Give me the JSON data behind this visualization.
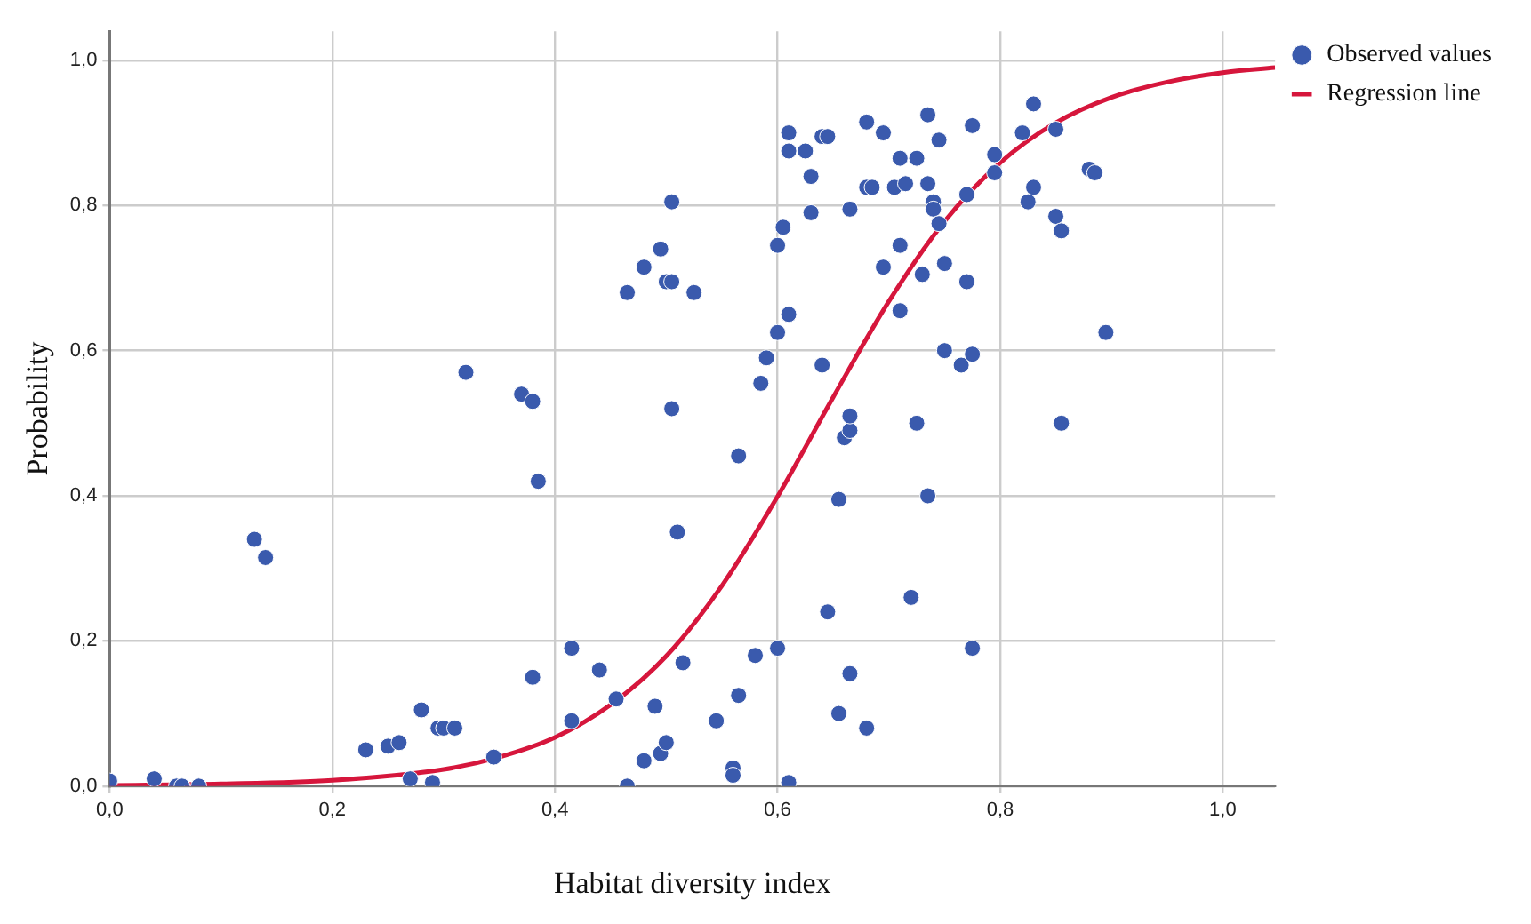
{
  "chart_data": {
    "type": "scatter",
    "xlabel": "Habitat diversity index",
    "ylabel": "Probability",
    "xlim": [
      0,
      1.047
    ],
    "ylim": [
      0,
      1.04
    ],
    "xticks": [
      {
        "value": 0,
        "label": "0,0"
      },
      {
        "value": 0.2,
        "label": "0,2"
      },
      {
        "value": 0.4,
        "label": "0,4"
      },
      {
        "value": 0.6,
        "label": "0,6"
      },
      {
        "value": 0.8,
        "label": "0,8"
      },
      {
        "value": 1,
        "label": "1,0"
      }
    ],
    "yticks": [
      {
        "value": 0,
        "label": "0,0"
      },
      {
        "value": 0.2,
        "label": "0,2"
      },
      {
        "value": 0.4,
        "label": "0,4"
      },
      {
        "value": 0.6,
        "label": "0,6"
      },
      {
        "value": 0.8,
        "label": "0,8"
      },
      {
        "value": 1,
        "label": "1,0"
      }
    ],
    "grid": true,
    "legend": "top right",
    "marker": "circle",
    "series": [
      {
        "name": "Observed values",
        "color": "#3a5aad",
        "x": [
          0,
          0.04,
          0.06,
          0.065,
          0.08,
          0.13,
          0.14,
          0.23,
          0.25,
          0.26,
          0.28,
          0.27,
          0.29,
          0.295,
          0.3,
          0.31,
          0.345,
          0.38,
          0.415,
          0.415,
          0.44,
          0.455,
          0.465,
          0.48,
          0.49,
          0.495,
          0.5,
          0.51,
          0.515,
          0.545,
          0.565,
          0.56,
          0.56,
          0.58,
          0.6,
          0.61,
          0.645,
          0.655,
          0.665,
          0.68,
          0.72,
          0.775,
          0.32,
          0.37,
          0.38,
          0.385,
          0.465,
          0.48,
          0.495,
          0.5,
          0.505,
          0.505,
          0.525,
          0.505,
          0.565,
          0.585,
          0.59,
          0.6,
          0.6,
          0.605,
          0.61,
          0.64,
          0.63,
          0.655,
          0.66,
          0.665,
          0.665,
          0.665,
          0.68,
          0.685,
          0.695,
          0.705,
          0.71,
          0.71,
          0.715,
          0.725,
          0.73,
          0.735,
          0.735,
          0.74,
          0.74,
          0.745,
          0.75,
          0.75,
          0.765,
          0.77,
          0.77,
          0.775,
          0.61,
          0.61,
          0.625,
          0.63,
          0.64,
          0.645,
          0.68,
          0.695,
          0.71,
          0.725,
          0.735,
          0.745,
          0.775,
          0.795,
          0.795,
          0.82,
          0.825,
          0.83,
          0.83,
          0.85,
          0.85,
          0.855,
          0.855,
          0.88,
          0.885,
          0.895
        ],
        "values": [
          0.007,
          0.01,
          0,
          0,
          0,
          0.34,
          0.315,
          0.05,
          0.055,
          0.06,
          0.105,
          0.01,
          0.005,
          0.08,
          0.08,
          0.08,
          0.04,
          0.15,
          0.19,
          0.09,
          0.16,
          0.12,
          0,
          0.035,
          0.11,
          0.045,
          0.06,
          0.35,
          0.17,
          0.09,
          0.125,
          0.025,
          0.015,
          0.18,
          0.19,
          0.005,
          0.24,
          0.1,
          0.155,
          0.08,
          0.26,
          0.19,
          0.57,
          0.54,
          0.53,
          0.42,
          0.68,
          0.715,
          0.74,
          0.695,
          0.695,
          0.805,
          0.68,
          0.52,
          0.455,
          0.555,
          0.59,
          0.625,
          0.745,
          0.77,
          0.65,
          0.58,
          0.79,
          0.395,
          0.48,
          0.49,
          0.51,
          0.795,
          0.825,
          0.825,
          0.715,
          0.825,
          0.745,
          0.655,
          0.83,
          0.5,
          0.705,
          0.4,
          0.83,
          0.805,
          0.795,
          0.775,
          0.72,
          0.6,
          0.58,
          0.815,
          0.695,
          0.595,
          0.9,
          0.875,
          0.875,
          0.84,
          0.895,
          0.895,
          0.915,
          0.9,
          0.865,
          0.865,
          0.925,
          0.89,
          0.91,
          0.87,
          0.845,
          0.9,
          0.805,
          0.825,
          0.94,
          0.785,
          0.905,
          0.765,
          0.5,
          0.85,
          0.845,
          0.625
        ]
      },
      {
        "name": "Regression line",
        "type": "line",
        "color": "#d6163c",
        "marker": "none",
        "x": [
          0,
          0.1,
          0.2,
          0.3,
          0.35,
          0.4,
          0.45,
          0.5,
          0.55,
          0.6,
          0.65,
          0.7,
          0.75,
          0.8,
          0.85,
          0.9,
          0.95,
          1,
          1.047
        ],
        "values": [
          0.001,
          0.003,
          0.008,
          0.023,
          0.04,
          0.067,
          0.112,
          0.179,
          0.276,
          0.399,
          0.536,
          0.668,
          0.778,
          0.859,
          0.914,
          0.949,
          0.97,
          0.983,
          0.99
        ]
      }
    ]
  }
}
